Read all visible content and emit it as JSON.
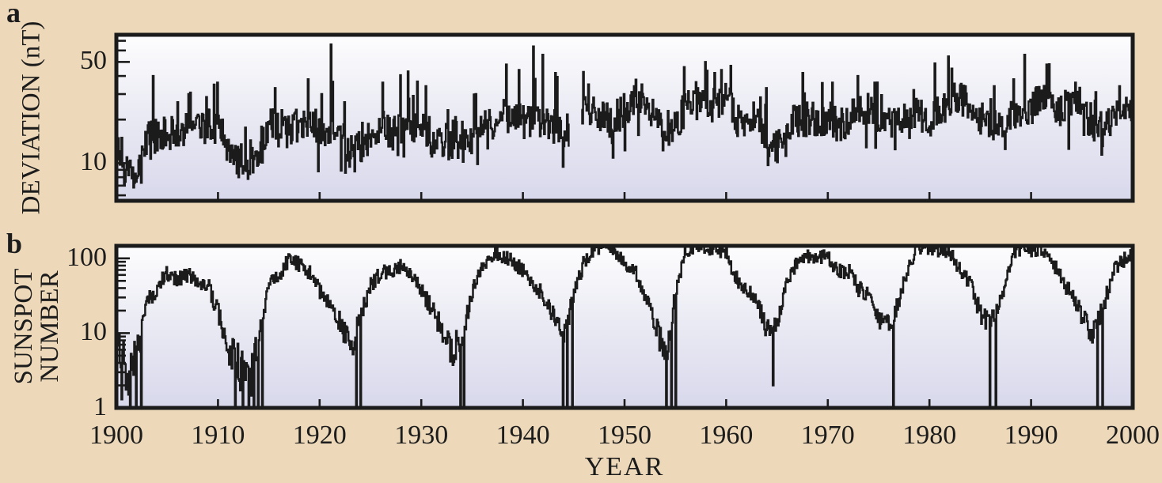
{
  "figure": {
    "panel_a": {
      "letter": "a",
      "ylabel": "DEVIATION (nT)"
    },
    "panel_b": {
      "letter": "b",
      "ylabel_line1": "SUNSPOT",
      "ylabel_line2": "NUMBER"
    },
    "x_axis": {
      "title": "YEAR",
      "tick_values": [
        1900,
        1910,
        1920,
        1930,
        1940,
        1950,
        1960,
        1970,
        1980,
        1990,
        2000
      ],
      "tick_labels": [
        "1900",
        "1910",
        "1920",
        "1930",
        "1940",
        "1950",
        "1960",
        "1970",
        "1980",
        "1990",
        "2000"
      ]
    },
    "colors": {
      "background": "#edd9b9",
      "plot_gradient_top": "#fdfdfe",
      "plot_gradient_mid": "#ebebf4",
      "plot_gradient_bottom": "#d8d8ec",
      "trace": "#1b1b1b",
      "frame": "#1b1b1b",
      "text": "#1c1c1c"
    }
  },
  "chart_data": [
    {
      "type": "line",
      "panel": "a",
      "series_name": "geomagnetic deviation (nT), monthly",
      "ylabel": "DEVIATION (nT)",
      "xlabel": "YEAR",
      "yscale": "log",
      "xlim": [
        1900,
        2000
      ],
      "ylim": [
        5.5,
        77
      ],
      "yticks_labeled": [
        {
          "value": 50,
          "label": "50"
        },
        {
          "value": 10,
          "label": "10"
        }
      ],
      "yticks_minor": [
        6,
        7,
        8,
        9,
        20,
        30,
        40,
        60,
        70
      ],
      "grid": false,
      "legend": false,
      "x_start": 1900,
      "x_step": 1,
      "values": [
        12,
        8.5,
        9,
        16,
        15,
        16,
        16,
        17,
        17,
        18,
        17,
        13,
        10.5,
        10,
        13,
        18,
        19,
        17,
        19,
        19,
        17,
        18,
        16,
        12,
        13,
        15,
        18,
        16,
        17,
        16,
        19,
        15,
        15,
        12,
        13,
        15,
        17,
        19,
        22,
        20,
        20,
        21,
        18,
        20,
        16,
        18,
        24,
        22,
        20,
        20,
        24,
        25,
        24,
        20,
        15,
        18,
        24,
        26,
        25,
        26,
        28,
        20,
        19,
        19,
        14,
        12.5,
        18,
        20,
        20,
        20,
        21,
        18,
        20,
        23,
        25,
        18,
        20,
        19,
        22,
        21,
        19,
        24,
        28,
        27,
        25,
        20,
        19,
        19,
        21,
        26,
        23,
        29,
        25,
        23,
        26,
        21,
        19,
        17,
        21,
        21,
        23
      ],
      "data_gap_years": [
        1944.5,
        1945.75
      ],
      "peak_events": [
        [
          1903.6,
          40
        ],
        [
          1907.1,
          30
        ],
        [
          1909.9,
          36
        ],
        [
          1915.6,
          33
        ],
        [
          1918.8,
          38
        ],
        [
          1920.2,
          30
        ],
        [
          1921.1,
          66
        ],
        [
          1926.2,
          36
        ],
        [
          1928.7,
          43
        ],
        [
          1930.4,
          34
        ],
        [
          1935.3,
          30
        ],
        [
          1938.3,
          48
        ],
        [
          1939.6,
          44
        ],
        [
          1941.0,
          64
        ],
        [
          1941.9,
          56
        ],
        [
          1943.2,
          42
        ],
        [
          1946.4,
          35
        ],
        [
          1949.9,
          30
        ],
        [
          1950.9,
          34
        ],
        [
          1951.7,
          35
        ],
        [
          1957.9,
          50
        ],
        [
          1958.8,
          42
        ],
        [
          1959.5,
          44
        ],
        [
          1960.4,
          47
        ],
        [
          1963.9,
          33
        ],
        [
          1967.5,
          42
        ],
        [
          1970.4,
          36
        ],
        [
          1972.9,
          40
        ],
        [
          1974.6,
          36
        ],
        [
          1978.4,
          32
        ],
        [
          1982.2,
          45
        ],
        [
          1986.3,
          34
        ],
        [
          1989.3,
          56
        ],
        [
          1991.5,
          48
        ],
        [
          1994.3,
          36
        ],
        [
          1998.7,
          34
        ],
        [
          1999.9,
          37
        ]
      ]
    },
    {
      "type": "line",
      "panel": "b",
      "series_name": "sunspot number, monthly",
      "ylabel": "SUNSPOT NUMBER",
      "xlabel": "YEAR",
      "yscale": "log",
      "xlim": [
        1900,
        2000
      ],
      "ylim": [
        1,
        147
      ],
      "yticks_labeled": [
        {
          "value": 100,
          "label": "100"
        },
        {
          "value": 10,
          "label": "10"
        },
        {
          "value": 1,
          "label": "1"
        }
      ],
      "yticks_minor": [
        2,
        3,
        4,
        5,
        6,
        7,
        8,
        9,
        20,
        30,
        40,
        50,
        60,
        70,
        80,
        90
      ],
      "grid": false,
      "legend": false,
      "x_start": 1900,
      "x_step": 1,
      "values": [
        9.5,
        2.7,
        5,
        24.4,
        42,
        63.5,
        53.8,
        62,
        48.5,
        43.9,
        18.6,
        5.7,
        3.6,
        1.4,
        9.6,
        47.4,
        57.1,
        103.9,
        80.6,
        63.6,
        37.6,
        26.1,
        14.2,
        5.8,
        16.7,
        44.3,
        63.9,
        69,
        77.8,
        64.9,
        35.7,
        21.2,
        11.1,
        5.7,
        8.7,
        36.1,
        79.7,
        114.4,
        109.6,
        88.8,
        67.8,
        47.5,
        30.6,
        16.3,
        9.6,
        33.2,
        92.6,
        140,
        130,
        128,
        83.9,
        69.4,
        31.5,
        13.9,
        4.4,
        38,
        128,
        148,
        142,
        135,
        112.3,
        53.9,
        37.6,
        27.9,
        10.2,
        15.1,
        47,
        93.8,
        105.9,
        105.5,
        104.5,
        66.6,
        68.9,
        38,
        34.5,
        15.5,
        12.6,
        27.5,
        92.5,
        140,
        138,
        130,
        115.9,
        66.6,
        45.9,
        17.9,
        13.4,
        29.4,
        100.2,
        142,
        130,
        132,
        94.3,
        54.6,
        29.9,
        17.5,
        8.6,
        21.5,
        64.3,
        93.3,
        115
      ],
      "minimum_dips": [
        [
          1900.5,
          1.3
        ],
        [
          1901.3,
          1
        ],
        [
          1901.9,
          1
        ],
        [
          1902.4,
          1
        ],
        [
          1911.7,
          1
        ],
        [
          1912.4,
          1
        ],
        [
          1913.0,
          1
        ],
        [
          1913.5,
          1
        ],
        [
          1913.9,
          1
        ],
        [
          1914.3,
          1
        ],
        [
          1923.6,
          1
        ],
        [
          1924.0,
          1
        ],
        [
          1933.8,
          1
        ],
        [
          1934.2,
          1
        ],
        [
          1943.9,
          1
        ],
        [
          1944.3,
          1
        ],
        [
          1944.8,
          1
        ],
        [
          1954.1,
          1
        ],
        [
          1954.6,
          1
        ],
        [
          1955.0,
          1
        ],
        [
          1964.6,
          2
        ],
        [
          1976.4,
          1
        ],
        [
          1985.9,
          1
        ],
        [
          1986.5,
          1
        ],
        [
          1996.5,
          1
        ],
        [
          1997.0,
          1
        ]
      ]
    }
  ]
}
